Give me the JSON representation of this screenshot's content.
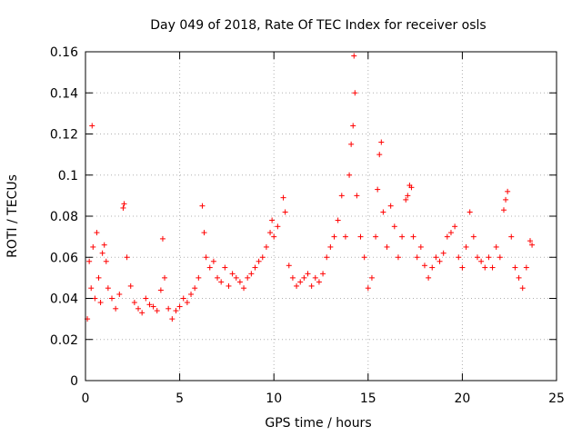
{
  "chart_data": {
    "type": "scatter",
    "title": "Day 049 of 2018, Rate Of TEC Index for receiver osls",
    "xlabel": "GPS time / hours",
    "ylabel": "ROTI / TECUs",
    "xlim": [
      0,
      25
    ],
    "ylim": [
      0,
      0.16
    ],
    "xticks": [
      0,
      5,
      10,
      15,
      20,
      25
    ],
    "yticks": [
      0,
      0.02,
      0.04,
      0.06,
      0.08,
      0.1,
      0.12,
      0.14,
      0.16
    ],
    "xtick_labels": [
      "0",
      "5",
      "10",
      "15",
      "20",
      "25"
    ],
    "ytick_labels": [
      "0",
      "0.02",
      "0.04",
      "0.06",
      "0.08",
      "0.1",
      "0.12",
      "0.14",
      "0.16"
    ],
    "grid": true,
    "marker": "+",
    "color": "#ff0000",
    "series": [
      {
        "name": "ROTI",
        "x": [
          0.1,
          0.2,
          0.3,
          0.35,
          0.4,
          0.5,
          0.6,
          0.7,
          0.8,
          0.9,
          1.0,
          1.1,
          1.2,
          1.4,
          1.6,
          1.8,
          2.0,
          2.05,
          2.2,
          2.4,
          2.6,
          2.8,
          3.0,
          3.2,
          3.4,
          3.6,
          3.8,
          4.0,
          4.1,
          4.2,
          4.4,
          4.6,
          4.8,
          5.0,
          5.2,
          5.4,
          5.6,
          5.8,
          6.0,
          6.2,
          6.3,
          6.4,
          6.6,
          6.8,
          7.0,
          7.2,
          7.4,
          7.6,
          7.8,
          8.0,
          8.2,
          8.4,
          8.6,
          8.8,
          9.0,
          9.2,
          9.4,
          9.6,
          9.8,
          9.9,
          10.0,
          10.2,
          10.5,
          10.6,
          10.8,
          11.0,
          11.2,
          11.4,
          11.6,
          11.8,
          12.0,
          12.2,
          12.4,
          12.6,
          12.8,
          13.0,
          13.2,
          13.4,
          13.6,
          13.8,
          14.0,
          14.1,
          14.2,
          14.25,
          14.3,
          14.4,
          14.6,
          14.8,
          15.0,
          15.2,
          15.4,
          15.5,
          15.6,
          15.7,
          15.8,
          16.0,
          16.2,
          16.4,
          16.6,
          16.8,
          17.0,
          17.1,
          17.2,
          17.3,
          17.4,
          17.6,
          17.8,
          18.0,
          18.2,
          18.4,
          18.6,
          18.8,
          19.0,
          19.2,
          19.4,
          19.6,
          19.8,
          20.0,
          20.2,
          20.4,
          20.6,
          20.8,
          21.0,
          21.2,
          21.4,
          21.6,
          21.8,
          22.0,
          22.2,
          22.3,
          22.4,
          22.6,
          22.8,
          23.0,
          23.2,
          23.4,
          23.6,
          23.7
        ],
        "y": [
          0.03,
          0.058,
          0.045,
          0.124,
          0.065,
          0.04,
          0.072,
          0.05,
          0.038,
          0.062,
          0.066,
          0.058,
          0.045,
          0.04,
          0.035,
          0.042,
          0.084,
          0.086,
          0.06,
          0.046,
          0.038,
          0.035,
          0.033,
          0.04,
          0.037,
          0.036,
          0.034,
          0.044,
          0.069,
          0.05,
          0.035,
          0.03,
          0.034,
          0.036,
          0.04,
          0.038,
          0.042,
          0.045,
          0.05,
          0.085,
          0.072,
          0.06,
          0.055,
          0.058,
          0.05,
          0.048,
          0.055,
          0.046,
          0.052,
          0.05,
          0.048,
          0.045,
          0.05,
          0.052,
          0.055,
          0.058,
          0.06,
          0.065,
          0.072,
          0.078,
          0.07,
          0.075,
          0.089,
          0.082,
          0.056,
          0.05,
          0.046,
          0.048,
          0.05,
          0.052,
          0.046,
          0.05,
          0.048,
          0.052,
          0.06,
          0.065,
          0.07,
          0.078,
          0.09,
          0.07,
          0.1,
          0.115,
          0.124,
          0.158,
          0.14,
          0.09,
          0.07,
          0.06,
          0.045,
          0.05,
          0.07,
          0.093,
          0.11,
          0.116,
          0.082,
          0.065,
          0.085,
          0.075,
          0.06,
          0.07,
          0.088,
          0.09,
          0.095,
          0.094,
          0.07,
          0.06,
          0.065,
          0.056,
          0.05,
          0.055,
          0.06,
          0.058,
          0.062,
          0.07,
          0.072,
          0.075,
          0.06,
          0.055,
          0.065,
          0.082,
          0.07,
          0.06,
          0.058,
          0.055,
          0.06,
          0.055,
          0.065,
          0.06,
          0.083,
          0.088,
          0.092,
          0.07,
          0.055,
          0.05,
          0.045,
          0.055,
          0.068,
          0.066
        ]
      }
    ]
  }
}
